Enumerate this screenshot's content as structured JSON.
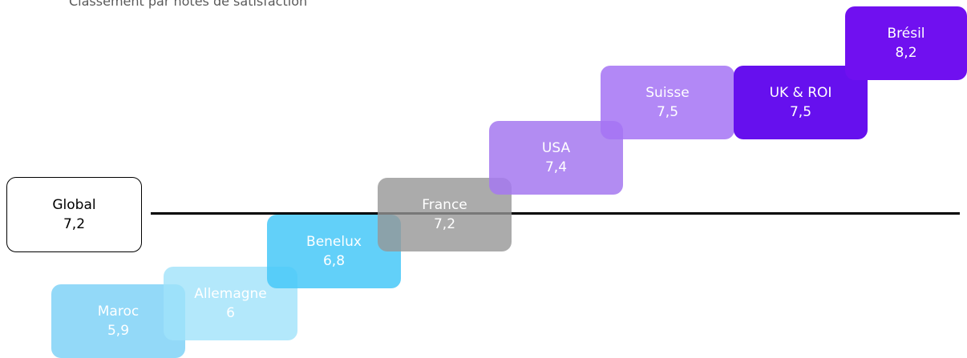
{
  "title": "Classement par notes de satisfaction",
  "global": {
    "label": "Global",
    "value": "7,2"
  },
  "items": [
    {
      "label": "Maroc",
      "value": "5,9"
    },
    {
      "label": "Allemagne",
      "value": "6"
    },
    {
      "label": "Benelux",
      "value": "6,8"
    },
    {
      "label": "France",
      "value": "7,2"
    },
    {
      "label": "USA",
      "value": "7,4"
    },
    {
      "label": "Suisse",
      "value": "7,5"
    },
    {
      "label": "UK & ROI",
      "value": "7,5"
    },
    {
      "label": "Brésil",
      "value": "8,2"
    }
  ]
}
